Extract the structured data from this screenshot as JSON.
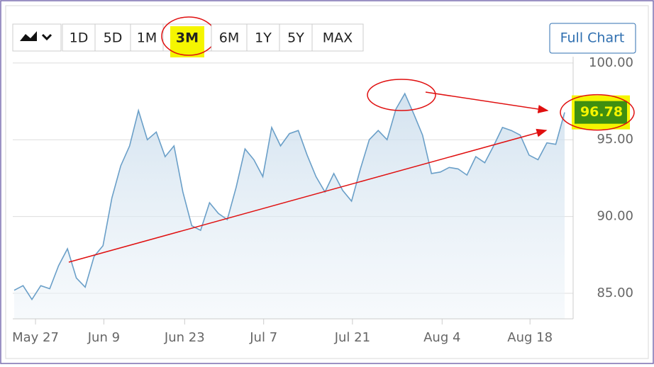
{
  "toolbar": {
    "ranges": [
      "1D",
      "5D",
      "1M",
      "3M",
      "6M",
      "1Y",
      "5Y",
      "MAX"
    ],
    "selected": "3M",
    "full_chart": "Full Chart"
  },
  "chart_data": {
    "type": "area",
    "values": [
      85.2,
      85.5,
      84.6,
      85.5,
      85.3,
      86.8,
      87.9,
      86.0,
      85.4,
      87.4,
      88.1,
      91.2,
      93.3,
      94.6,
      96.9,
      95.0,
      95.5,
      93.9,
      94.6,
      91.6,
      89.4,
      89.1,
      90.9,
      90.2,
      89.8,
      91.9,
      94.4,
      93.7,
      92.6,
      95.8,
      94.6,
      95.4,
      95.6,
      94.0,
      92.6,
      91.6,
      92.8,
      91.7,
      91.0,
      93.1,
      95.0,
      95.6,
      95.0,
      97.0,
      98.0,
      96.7,
      95.3,
      92.8,
      92.9,
      93.2,
      93.1,
      92.7,
      93.9,
      93.5,
      94.6,
      95.8,
      95.6,
      95.3,
      94.0,
      93.7,
      94.8,
      94.7,
      96.78
    ],
    "color": "#6a9fc8",
    "current_price": 96.78,
    "xlim": [
      0,
      62
    ],
    "xticks": [
      {
        "value": 2.4,
        "label": "May 27"
      },
      {
        "value": 10.1,
        "label": "Jun 9"
      },
      {
        "value": 19.2,
        "label": "Jun 23"
      },
      {
        "value": 28.1,
        "label": "Jul 7"
      },
      {
        "value": 38.1,
        "label": "Jul 21"
      },
      {
        "value": 48.2,
        "label": "Aug 4"
      },
      {
        "value": 58.1,
        "label": "Aug 18"
      }
    ],
    "ylim": [
      83.34,
      100.5
    ],
    "yticks": [
      {
        "value": 85,
        "label": "85.00"
      },
      {
        "value": 90,
        "label": "90.00"
      },
      {
        "value": 95,
        "label": "95.00"
      },
      {
        "value": 100,
        "label": "100.00"
      }
    ],
    "grid": true
  }
}
